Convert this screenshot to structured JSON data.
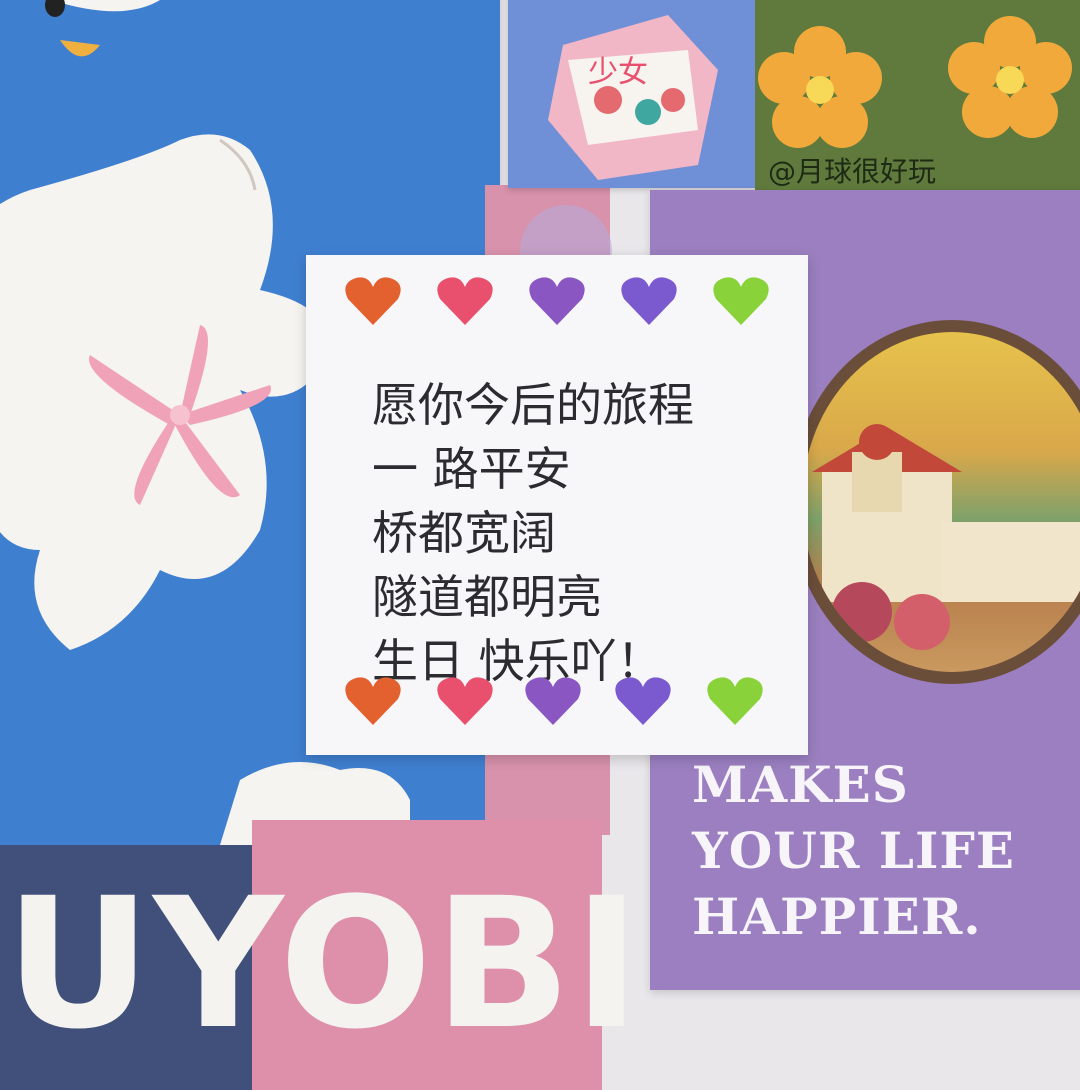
{
  "note": {
    "lines": [
      "愿你今后的旅程",
      "一 路平安",
      "桥都宽阔",
      "隧道都明亮",
      "生日 快乐吖！"
    ],
    "heart_colors": [
      "#e3612f",
      "#e8506e",
      "#8a57c2",
      "#7b5ad0",
      "#8ad23a"
    ]
  },
  "cards": {
    "watermark": "@月球很好玩",
    "slogan": "MAKES\nYOUR LIFE\nHAPPIER.",
    "bottom_word": "UYOBI",
    "carton_text": "少女"
  }
}
